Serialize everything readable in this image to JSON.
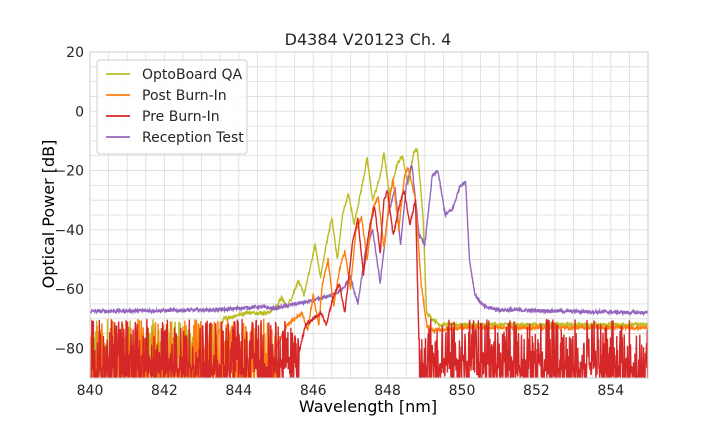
{
  "chart_data": {
    "type": "line",
    "title": "D4384 V20123 Ch. 4",
    "xlabel": "Wavelength [nm]",
    "ylabel": "Optical Power [dB]",
    "xlim": [
      840,
      855
    ],
    "ylim": [
      -90,
      20
    ],
    "xticks": [
      "840",
      "842",
      "844",
      "846",
      "848",
      "850",
      "852",
      "854"
    ],
    "yticks": [
      "−80",
      "−60",
      "−40",
      "−20",
      "0",
      "20"
    ],
    "grid": true,
    "legend_position": "top-left",
    "series": [
      {
        "name": "OptoBoard QA",
        "color": "#bcbd22",
        "noise_floor": -80,
        "points": [
          [
            840,
            -80
          ],
          [
            843.3,
            -80
          ],
          [
            843.6,
            -70
          ],
          [
            844.2,
            -68
          ],
          [
            844.8,
            -68
          ],
          [
            845.0,
            -66
          ],
          [
            845.15,
            -63
          ],
          [
            845.3,
            -66
          ],
          [
            845.45,
            -62
          ],
          [
            845.6,
            -57
          ],
          [
            845.75,
            -62
          ],
          [
            845.9,
            -54
          ],
          [
            846.05,
            -45
          ],
          [
            846.2,
            -56
          ],
          [
            846.35,
            -45
          ],
          [
            846.5,
            -36
          ],
          [
            846.65,
            -50
          ],
          [
            846.8,
            -34
          ],
          [
            846.95,
            -28
          ],
          [
            847.1,
            -38
          ],
          [
            847.3,
            -26
          ],
          [
            847.45,
            -16
          ],
          [
            847.6,
            -30
          ],
          [
            847.8,
            -22
          ],
          [
            847.9,
            -14
          ],
          [
            848.05,
            -28
          ],
          [
            848.25,
            -18
          ],
          [
            848.4,
            -15
          ],
          [
            848.55,
            -25
          ],
          [
            848.7,
            -14
          ],
          [
            848.8,
            -13
          ],
          [
            848.95,
            -35
          ],
          [
            849.05,
            -68
          ],
          [
            849.2,
            -70
          ],
          [
            849.4,
            -72
          ],
          [
            850.0,
            -72
          ],
          [
            855,
            -72
          ]
        ]
      },
      {
        "name": "Post Burn-In",
        "color": "#ff7f0e",
        "noise_floor": -80,
        "points": [
          [
            840,
            -80
          ],
          [
            845.0,
            -80
          ],
          [
            845.3,
            -72
          ],
          [
            845.7,
            -68
          ],
          [
            845.85,
            -74
          ],
          [
            846.0,
            -62
          ],
          [
            846.15,
            -72
          ],
          [
            846.25,
            -58
          ],
          [
            846.4,
            -50
          ],
          [
            846.55,
            -66
          ],
          [
            846.7,
            -54
          ],
          [
            846.85,
            -47
          ],
          [
            847.0,
            -60
          ],
          [
            847.15,
            -40
          ],
          [
            847.3,
            -36
          ],
          [
            847.45,
            -50
          ],
          [
            847.6,
            -33
          ],
          [
            847.75,
            -29
          ],
          [
            847.9,
            -46
          ],
          [
            848.05,
            -30
          ],
          [
            848.15,
            -23
          ],
          [
            848.3,
            -40
          ],
          [
            848.45,
            -22
          ],
          [
            848.55,
            -19
          ],
          [
            848.75,
            -30
          ],
          [
            848.9,
            -58
          ],
          [
            849.05,
            -72
          ],
          [
            849.2,
            -74
          ],
          [
            850.0,
            -73
          ],
          [
            855,
            -73
          ]
        ]
      },
      {
        "name": "Pre Burn-In",
        "color": "#d62728",
        "noise_floor": -82,
        "points": [
          [
            840,
            -82
          ],
          [
            845.6,
            -82
          ],
          [
            845.8,
            -72
          ],
          [
            846.0,
            -70
          ],
          [
            846.2,
            -68
          ],
          [
            846.35,
            -72
          ],
          [
            846.55,
            -62
          ],
          [
            846.7,
            -58
          ],
          [
            846.85,
            -68
          ],
          [
            847.05,
            -45
          ],
          [
            847.2,
            -36
          ],
          [
            847.35,
            -55
          ],
          [
            847.5,
            -40
          ],
          [
            847.65,
            -32
          ],
          [
            847.8,
            -48
          ],
          [
            847.9,
            -30
          ],
          [
            848.0,
            -27
          ],
          [
            848.15,
            -42
          ],
          [
            848.35,
            -30
          ],
          [
            848.45,
            -27
          ],
          [
            848.6,
            -38
          ],
          [
            848.75,
            -30
          ],
          [
            848.85,
            -82
          ],
          [
            849.2,
            -82
          ],
          [
            855,
            -82
          ]
        ]
      },
      {
        "name": "Reception Test",
        "color": "#9467bd",
        "noise_floor": null,
        "points": [
          [
            840,
            -67.5
          ],
          [
            843.5,
            -67
          ],
          [
            844.5,
            -66
          ],
          [
            845.0,
            -66.5
          ],
          [
            845.5,
            -65
          ],
          [
            846.0,
            -64
          ],
          [
            846.5,
            -62
          ],
          [
            846.8,
            -60
          ],
          [
            847.0,
            -56
          ],
          [
            847.2,
            -65
          ],
          [
            847.4,
            -48
          ],
          [
            847.6,
            -40
          ],
          [
            847.8,
            -58
          ],
          [
            848.0,
            -36
          ],
          [
            848.2,
            -26
          ],
          [
            848.35,
            -45
          ],
          [
            848.5,
            -25
          ],
          [
            848.65,
            -18
          ],
          [
            848.85,
            -42
          ],
          [
            849.0,
            -45
          ],
          [
            849.2,
            -22
          ],
          [
            849.35,
            -20
          ],
          [
            849.55,
            -35
          ],
          [
            849.75,
            -33
          ],
          [
            849.95,
            -25
          ],
          [
            850.1,
            -24
          ],
          [
            850.2,
            -50
          ],
          [
            850.35,
            -62
          ],
          [
            850.6,
            -66
          ],
          [
            851.0,
            -67
          ],
          [
            853.0,
            -67.5
          ],
          [
            855,
            -68
          ]
        ]
      }
    ]
  }
}
